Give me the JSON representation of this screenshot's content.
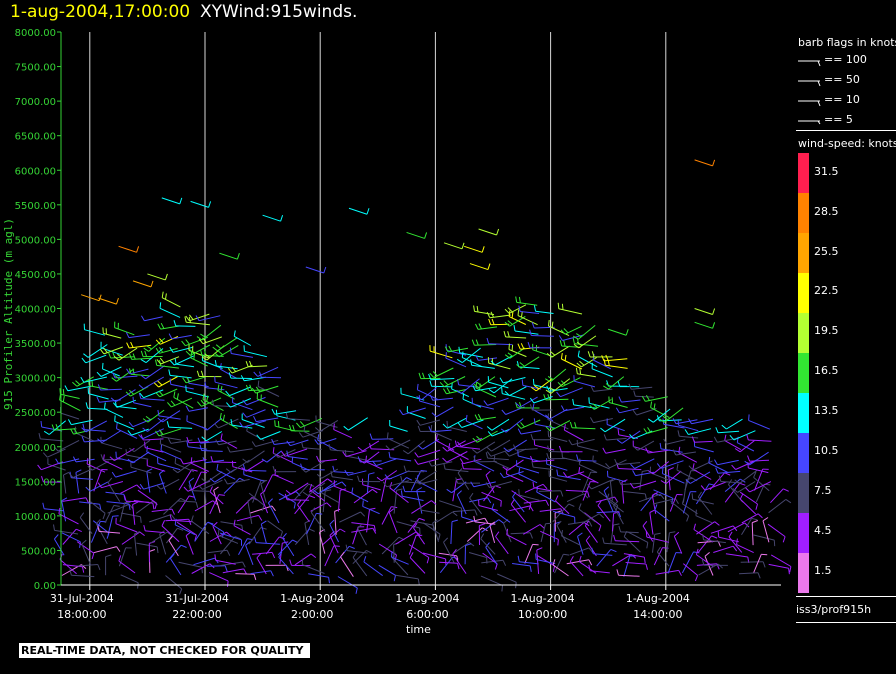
{
  "title": {
    "date": "1-aug-2004,17:00:00",
    "name": "XYWind:915winds."
  },
  "qc_note": "REAL-TIME DATA, NOT CHECKED FOR QUALITY",
  "source": "iss3/prof915h",
  "legend": {
    "barbs_title": "barb flags in knots",
    "barbs": [
      "== 100",
      "== 50",
      "== 10",
      "== 5"
    ],
    "speed_title": "wind-speed: knots",
    "speed_bins": [
      {
        "label": "31.5",
        "color": "#ff1f4f"
      },
      {
        "label": "28.5",
        "color": "#ff8200"
      },
      {
        "label": "25.5",
        "color": "#ffa500"
      },
      {
        "label": "22.5",
        "color": "#ffff00"
      },
      {
        "label": "19.5",
        "color": "#b4ff32"
      },
      {
        "label": "16.5",
        "color": "#32e632"
      },
      {
        "label": "13.5",
        "color": "#00ffff"
      },
      {
        "label": "10.5",
        "color": "#4646ff"
      },
      {
        "label": "7.5",
        "color": "#46466e"
      },
      {
        "label": "4.5",
        "color": "#a01eff"
      },
      {
        "label": "1.5",
        "color": "#eb78eb"
      }
    ]
  },
  "chart_data": {
    "type": "scatter",
    "title": "XYWind:915winds.",
    "xlabel": "time",
    "ylabel": "915 Profiler Altitude (m agl)",
    "ylim": [
      0,
      8000
    ],
    "y_ticks": [
      "0.00",
      "500.00",
      "1000.00",
      "1500.00",
      "2000.00",
      "2500.00",
      "3000.00",
      "3500.00",
      "4000.00",
      "4500.00",
      "5000.00",
      "5500.00",
      "6000.00",
      "6500.00",
      "7000.00",
      "7500.00",
      "8000.00"
    ],
    "x_ticks": [
      {
        "date": "31-Jul-2004",
        "time": "18:00:00"
      },
      {
        "date": "31-Jul-2004",
        "time": "22:00:00"
      },
      {
        "date": "1-Aug-2004",
        "time": "2:00:00"
      },
      {
        "date": "1-Aug-2004",
        "time": "6:00:00"
      },
      {
        "date": "1-Aug-2004",
        "time": "10:00:00"
      },
      {
        "date": "1-Aug-2004",
        "time": "14:00:00"
      }
    ],
    "x_range_hours": [
      -1.0,
      24.0
    ],
    "x_tick_hours": [
      0,
      4,
      8,
      12,
      16,
      20
    ],
    "grid": "vertical lines at time ticks",
    "barb_columns": {
      "start_hour": -0.9,
      "end_hour": 23.7,
      "step_hour": 0.5
    },
    "altitude_levels_m": [
      150,
      300,
      450,
      600,
      750,
      900,
      1050,
      1200,
      1350,
      1500,
      1650,
      1800,
      1950,
      2100,
      2250,
      2400,
      2550,
      2700,
      2850,
      3000,
      3150,
      3300,
      3450,
      3600,
      3750,
      3900,
      4050,
      4200
    ]
  }
}
